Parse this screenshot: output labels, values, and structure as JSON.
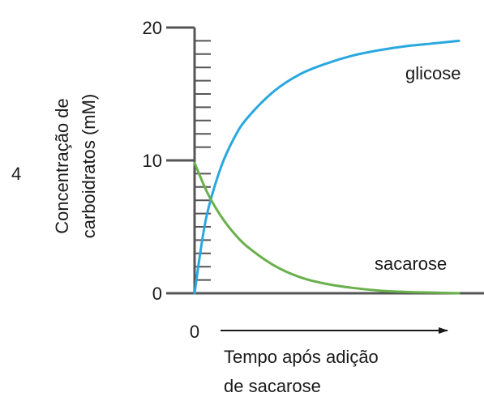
{
  "panel_label": "4",
  "colors": {
    "axis": "#555555",
    "glicose": "#29a8e0",
    "sacarose": "#6ab04c",
    "text": "#1a1a1a"
  },
  "chart_data": {
    "type": "line",
    "ylabel_lines": [
      "Concentração de",
      "carboidratos (mM)"
    ],
    "xlabel_lines": [
      "Tempo após adição",
      "de sacarose"
    ],
    "x_start_label": "0",
    "y_ticks": [
      "0",
      "10",
      "20"
    ],
    "ylim": [
      0,
      20
    ],
    "xlim": [
      0,
      10
    ],
    "minor_tick_step": 1,
    "grid": false,
    "legend": "labels next to curves",
    "series": [
      {
        "name": "glicose",
        "color": "#29a8e0",
        "x": [
          0,
          0.25,
          0.5,
          1,
          1.5,
          2,
          3,
          4,
          5,
          6,
          7,
          8,
          9,
          10
        ],
        "y": [
          0,
          3.5,
          6.2,
          9.5,
          11.7,
          13.2,
          15.2,
          16.5,
          17.3,
          17.9,
          18.3,
          18.6,
          18.8,
          19.0
        ]
      },
      {
        "name": "sacarose",
        "color": "#6ab04c",
        "x": [
          0,
          0.5,
          1,
          1.5,
          2,
          3,
          4,
          5,
          6,
          7,
          8,
          9,
          10
        ],
        "y": [
          9.8,
          7.5,
          5.8,
          4.5,
          3.5,
          2.1,
          1.2,
          0.7,
          0.4,
          0.2,
          0.1,
          0.05,
          0.0
        ]
      }
    ]
  }
}
